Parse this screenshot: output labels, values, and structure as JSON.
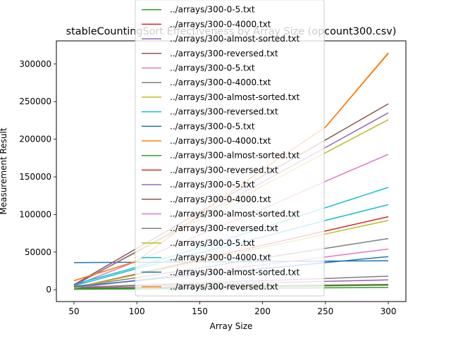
{
  "chart_data": {
    "type": "line",
    "title": "stableCountingSort Effectiveness by Array Size (opcount300.csv)",
    "xlabel": "Array Size",
    "ylabel": "Measurement Result",
    "xlim": [
      36,
      314
    ],
    "ylim": [
      -15750,
      330750
    ],
    "xticks": [
      50,
      100,
      150,
      200,
      250,
      300
    ],
    "xtick_labels": [
      "50",
      "100",
      "150",
      "200",
      "250",
      "300"
    ],
    "yticks": [
      0,
      50000,
      100000,
      150000,
      200000,
      250000,
      300000
    ],
    "ytick_labels": [
      "0",
      "50000",
      "100000",
      "150000",
      "200000",
      "250000",
      "300000"
    ],
    "grid": false,
    "legend_position": "upper center (overflowing top of axes)",
    "x": [
      50,
      100,
      150,
      200,
      250,
      300
    ],
    "series": [
      {
        "name": "../arrays/300-0-5.txt",
        "color": "#2ca02c",
        "values": [
          500,
          1000,
          1500,
          2000,
          2500,
          3000
        ]
      },
      {
        "name": "../arrays/300-0-4000.txt",
        "color": "#d62728",
        "values": [
          2000,
          3000,
          4000,
          5000,
          6000,
          7000
        ]
      },
      {
        "name": "../arrays/300-almost-sorted.txt",
        "color": "#9467bd",
        "values": [
          3000,
          5000,
          7000,
          9000,
          11000,
          13000
        ]
      },
      {
        "name": "../arrays/300-reversed.txt",
        "color": "#8c564b",
        "values": [
          1500,
          2500,
          3500,
          4500,
          5500,
          6500
        ]
      },
      {
        "name": "../arrays/300-0-5.txt",
        "color": "#e377c2",
        "values": [
          5000,
          38000,
          73000,
          107000,
          144000,
          180000
        ]
      },
      {
        "name": "../arrays/300-0-4000.txt",
        "color": "#7f7f7f",
        "values": [
          4000,
          16000,
          29000,
          42000,
          55000,
          68000
        ]
      },
      {
        "name": "../arrays/300-almost-sorted.txt",
        "color": "#bcbd22",
        "values": [
          6000,
          50000,
          94000,
          138000,
          182000,
          226000
        ]
      },
      {
        "name": "../arrays/300-reversed.txt",
        "color": "#17becf",
        "values": [
          7000,
          30000,
          56000,
          82000,
          109000,
          136000
        ]
      },
      {
        "name": "../arrays/300-0-5.txt",
        "color": "#1f77b4",
        "values": [
          36000,
          36500,
          37000,
          37500,
          38000,
          38500
        ]
      },
      {
        "name": "../arrays/300-0-4000.txt",
        "color": "#ff7f0e",
        "values": [
          12000,
          38000,
          100000,
          160000,
          216000,
          315000
        ]
      },
      {
        "name": "../arrays/300-almost-sorted.txt",
        "color": "#2ca02c",
        "values": [
          1000,
          2000,
          3000,
          4000,
          5000,
          6000
        ]
      },
      {
        "name": "../arrays/300-reversed.txt",
        "color": "#d62728",
        "values": [
          2500,
          21000,
          40000,
          59000,
          78000,
          97000
        ]
      },
      {
        "name": "../arrays/300-0-5.txt",
        "color": "#9467bd",
        "values": [
          5500,
          51000,
          97000,
          143000,
          189000,
          235000
        ]
      },
      {
        "name": "../arrays/300-0-4000.txt",
        "color": "#8c564b",
        "values": [
          6500,
          55000,
          103000,
          151000,
          199000,
          247000
        ]
      },
      {
        "name": "../arrays/300-almost-sorted.txt",
        "color": "#e377c2",
        "values": [
          2000,
          12500,
          23000,
          33000,
          43500,
          54000
        ]
      },
      {
        "name": "../arrays/300-reversed.txt",
        "color": "#7f7f7f",
        "values": [
          3000,
          6000,
          9000,
          12000,
          15000,
          18000
        ]
      },
      {
        "name": "../arrays/300-0-5.txt",
        "color": "#bcbd22",
        "values": [
          2500,
          20000,
          38000,
          56000,
          74000,
          92000
        ]
      },
      {
        "name": "../arrays/300-0-4000.txt",
        "color": "#17becf",
        "values": [
          5000,
          28000,
          49000,
          70000,
          92000,
          113000
        ]
      },
      {
        "name": "../arrays/300-almost-sorted.txt",
        "color": "#1f77b4",
        "values": [
          4000,
          12000,
          20000,
          28000,
          36000,
          44000
        ]
      },
      {
        "name": "../arrays/300-reversed.txt",
        "color": "#ff7f0e",
        "values": [
          12000,
          38000,
          100000,
          160000,
          216000,
          314000
        ]
      }
    ]
  }
}
